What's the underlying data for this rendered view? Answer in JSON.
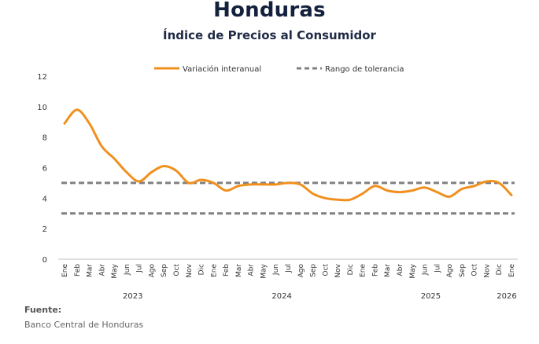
{
  "title": "Honduras",
  "subtitle": "Índice de Precios al Consumidor",
  "source_label": "Fuente:",
  "source_value": "Banco Central de Honduras",
  "chart_data": {
    "type": "line",
    "title": "Honduras",
    "subtitle": "Índice de Precios al Consumidor",
    "xlabel": "",
    "ylabel": "",
    "ylim": [
      0,
      12
    ],
    "yticks": [
      0,
      2,
      4,
      6,
      8,
      10,
      12
    ],
    "grid": false,
    "legend": "top",
    "months": [
      "Ene",
      "Feb",
      "Mar",
      "Abr",
      "May",
      "Jun",
      "Jul",
      "Ago",
      "Sep",
      "Oct",
      "Nov",
      "Dic",
      "Ene",
      "Feb",
      "Mar",
      "Abr",
      "May",
      "Jun",
      "Jul",
      "Ago",
      "Sep",
      "Oct",
      "Nov",
      "Dic",
      "Ene",
      "Feb",
      "Mar",
      "Abr",
      "May",
      "Jun",
      "Jul",
      "Ago",
      "Sep",
      "Oct",
      "Nov",
      "Dic",
      "Ene"
    ],
    "years": [
      {
        "label": "2023",
        "start": 0,
        "end": 11
      },
      {
        "label": "2024",
        "start": 12,
        "end": 23
      },
      {
        "label": "2025",
        "start": 24,
        "end": 35
      },
      {
        "label": "2026",
        "start": 36,
        "end": 36
      }
    ],
    "series": [
      {
        "name": "Variación interanual",
        "color": "#f0901e",
        "style": "solid",
        "values": [
          8.9,
          9.8,
          8.9,
          7.4,
          6.6,
          5.7,
          5.1,
          5.7,
          6.1,
          5.8,
          5.0,
          5.2,
          5.0,
          4.5,
          4.8,
          4.9,
          4.9,
          4.9,
          5.0,
          4.9,
          4.3,
          4.0,
          3.9,
          3.9,
          4.3,
          4.8,
          4.5,
          4.4,
          4.5,
          4.7,
          4.4,
          4.1,
          4.6,
          4.8,
          5.1,
          5.0,
          4.2
        ]
      },
      {
        "name": "Rango de tolerancia",
        "color": "#808080",
        "style": "dashed",
        "bands": [
          5,
          3
        ]
      }
    ]
  }
}
